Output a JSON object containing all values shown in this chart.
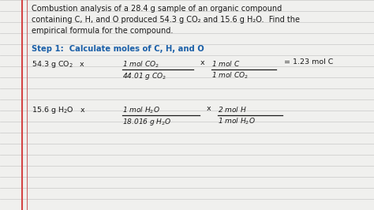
{
  "bg_color": "#f0f0ee",
  "line_color": "#c8c8c8",
  "red_line1_color": "#d44444",
  "red_line2_color": "#cc6666",
  "text_color": "#1a1a1a",
  "blue_text_color": "#1a5fa8",
  "title_lines": [
    "Combustion analysis of a 28.4 g sample of an organic compound",
    "containing C, H, and O produced 54.3 g CO₂ and 15.6 g H₂O.  Find the",
    "empirical formula for the compound."
  ],
  "step_label": "Step 1:  Calculate moles of C, H, and O",
  "figsize": [
    4.74,
    2.66
  ],
  "dpi": 100
}
